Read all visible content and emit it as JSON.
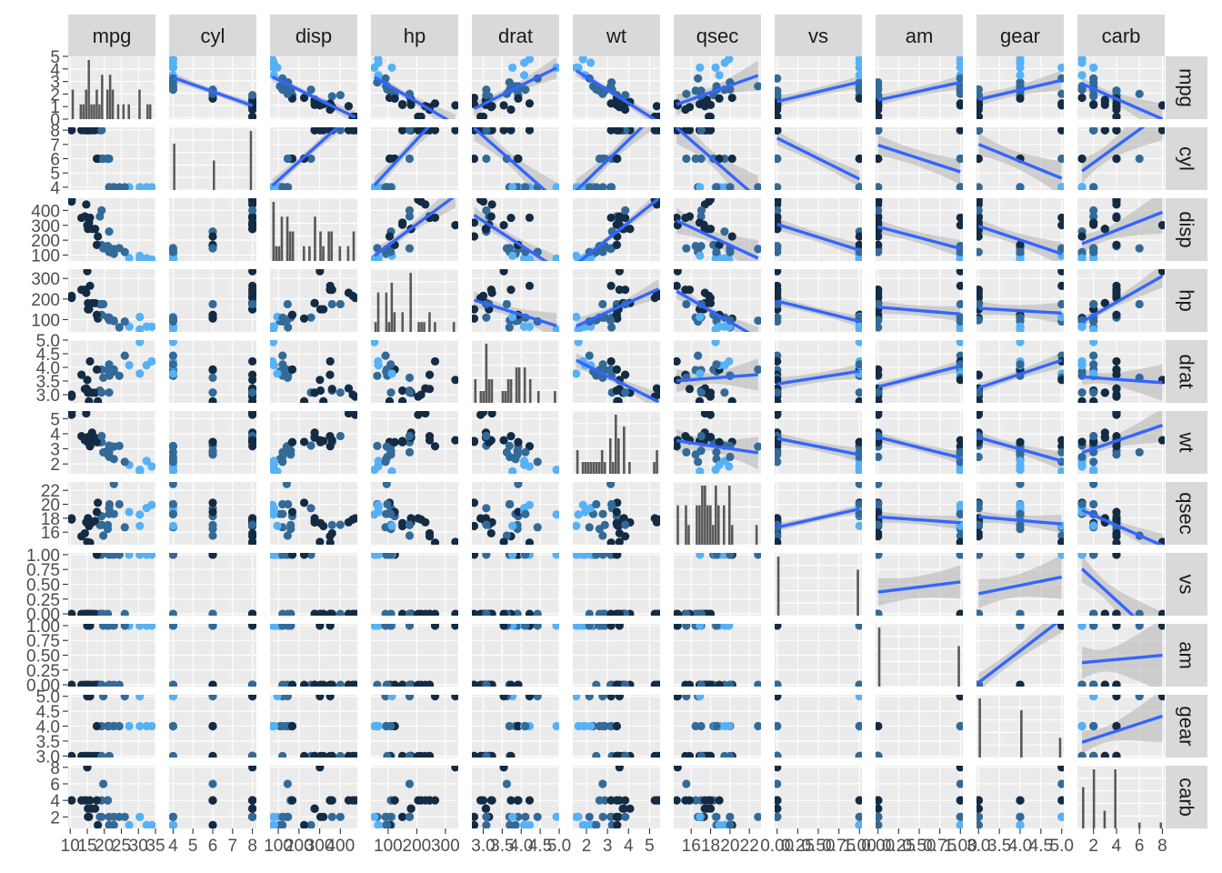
{
  "chart_data": {
    "type": "scatter-matrix",
    "description_variables": [
      "mpg",
      "cyl",
      "disp",
      "hp",
      "drat",
      "wt",
      "qsec",
      "vs",
      "am",
      "gear",
      "carb"
    ],
    "diagonal": "histogram",
    "upper": "points with linear fit and confidence band",
    "lower": "points",
    "colors": {
      "panel_bg": "#ebebeb",
      "grid_major": "#ffffff",
      "strip_bg": "#d9d9d9",
      "fit_line": "#3366ff",
      "band": "#b3b3b3",
      "bar": "#595959",
      "point_dark": "#132b43",
      "point_mid": "#336a98",
      "point_light": "#56b1f7"
    },
    "variables": [
      {
        "name": "mpg",
        "range": [
          9.4,
          35.0
        ],
        "ticks": [
          10,
          15,
          20,
          25,
          30,
          35
        ],
        "tick_labels": [
          "10",
          "15",
          "20",
          "25",
          "30",
          "35"
        ]
      },
      {
        "name": "cyl",
        "range": [
          3.8,
          8.2
        ],
        "ticks": [
          4,
          5,
          6,
          7,
          8
        ],
        "tick_labels": [
          "4",
          "5",
          "6",
          "7",
          "8"
        ]
      },
      {
        "name": "disp",
        "range": [
          60,
          482
        ],
        "ticks": [
          100,
          200,
          300,
          400
        ],
        "tick_labels": [
          "100",
          "200",
          "300",
          "400"
        ]
      },
      {
        "name": "hp",
        "range": [
          40,
          345
        ],
        "ticks": [
          100,
          200,
          300
        ],
        "tick_labels": [
          "100",
          "200",
          "300"
        ]
      },
      {
        "name": "drat",
        "range": [
          2.7,
          5.0
        ],
        "ticks": [
          3.0,
          3.5,
          4.0,
          4.5,
          5.0
        ],
        "tick_labels": [
          "3.0",
          "3.5",
          "4.0",
          "4.5",
          "5.0"
        ]
      },
      {
        "name": "wt",
        "range": [
          1.35,
          5.5
        ],
        "ticks": [
          2,
          3,
          4,
          5
        ],
        "tick_labels": [
          "2",
          "3",
          "4",
          "5"
        ]
      },
      {
        "name": "qsec",
        "range": [
          14.2,
          23.2
        ],
        "ticks": [
          16,
          18,
          20,
          22
        ],
        "tick_labels": [
          "16",
          "18",
          "20",
          "22"
        ]
      },
      {
        "name": "vs",
        "range": [
          -0.03,
          1.03
        ],
        "ticks": [
          0,
          0.25,
          0.5,
          0.75,
          1.0
        ],
        "tick_labels": [
          "0.00",
          "0.25",
          "0.50",
          "0.75",
          "1.00"
        ]
      },
      {
        "name": "am",
        "range": [
          -0.03,
          1.03
        ],
        "ticks": [
          0,
          0.25,
          0.5,
          0.75,
          1.0
        ],
        "tick_labels": [
          "0.00",
          "0.25",
          "0.50",
          "0.75",
          "1.00"
        ]
      },
      {
        "name": "gear",
        "range": [
          2.95,
          5.05
        ],
        "ticks": [
          3.0,
          3.5,
          4.0,
          4.5,
          5.0
        ],
        "tick_labels": [
          "3.0",
          "3.5",
          "4.0",
          "4.5",
          "5.0"
        ]
      },
      {
        "name": "carb",
        "range": [
          0.6,
          8.2
        ],
        "ticks": [
          2,
          4,
          6,
          8
        ],
        "tick_labels": [
          "2",
          "4",
          "6",
          "8"
        ]
      }
    ],
    "diag_y_axis": {
      "ticks": [
        0,
        1,
        2,
        3,
        4,
        5
      ],
      "tick_labels": [
        "0",
        "1",
        "2",
        "3",
        "4",
        "5"
      ]
    },
    "cars": [
      [
        21.0,
        6,
        160.0,
        110,
        3.9,
        2.62,
        16.46,
        0,
        1,
        4,
        4
      ],
      [
        21.0,
        6,
        160.0,
        110,
        3.9,
        2.875,
        17.02,
        0,
        1,
        4,
        4
      ],
      [
        22.8,
        4,
        108.0,
        93,
        3.85,
        2.32,
        18.61,
        1,
        1,
        4,
        1
      ],
      [
        21.4,
        6,
        258.0,
        110,
        3.08,
        3.215,
        19.44,
        1,
        0,
        3,
        1
      ],
      [
        18.7,
        8,
        360.0,
        175,
        3.15,
        3.44,
        17.02,
        0,
        0,
        3,
        2
      ],
      [
        18.1,
        6,
        225.0,
        105,
        2.76,
        3.46,
        20.22,
        1,
        0,
        3,
        1
      ],
      [
        14.3,
        8,
        360.0,
        245,
        3.21,
        3.57,
        15.84,
        0,
        0,
        3,
        4
      ],
      [
        24.4,
        4,
        146.7,
        62,
        3.69,
        3.19,
        20.0,
        1,
        0,
        4,
        2
      ],
      [
        22.8,
        4,
        140.8,
        95,
        3.92,
        3.15,
        22.9,
        1,
        0,
        4,
        2
      ],
      [
        19.2,
        6,
        167.6,
        123,
        3.92,
        3.44,
        18.3,
        1,
        0,
        4,
        4
      ],
      [
        17.8,
        6,
        167.6,
        123,
        3.92,
        3.44,
        18.9,
        1,
        0,
        4,
        4
      ],
      [
        16.4,
        8,
        275.8,
        180,
        3.07,
        4.07,
        17.4,
        0,
        0,
        3,
        3
      ],
      [
        17.3,
        8,
        275.8,
        180,
        3.07,
        3.73,
        17.6,
        0,
        0,
        3,
        3
      ],
      [
        15.2,
        8,
        275.8,
        180,
        3.07,
        3.78,
        18.0,
        0,
        0,
        3,
        3
      ],
      [
        10.4,
        8,
        472.0,
        205,
        2.93,
        5.25,
        17.98,
        0,
        0,
        3,
        4
      ],
      [
        10.4,
        8,
        460.0,
        215,
        3.0,
        5.424,
        17.82,
        0,
        0,
        3,
        4
      ],
      [
        14.7,
        8,
        440.0,
        230,
        3.23,
        5.345,
        17.42,
        0,
        0,
        3,
        4
      ],
      [
        32.4,
        4,
        78.7,
        66,
        4.08,
        2.2,
        19.47,
        1,
        1,
        4,
        1
      ],
      [
        30.4,
        4,
        75.7,
        52,
        4.93,
        1.615,
        18.52,
        1,
        1,
        4,
        2
      ],
      [
        33.9,
        4,
        71.1,
        65,
        4.22,
        1.835,
        19.9,
        1,
        1,
        4,
        1
      ],
      [
        21.5,
        4,
        120.1,
        97,
        3.7,
        2.465,
        20.01,
        1,
        0,
        3,
        1
      ],
      [
        15.5,
        8,
        318.0,
        150,
        2.76,
        3.52,
        16.87,
        0,
        0,
        3,
        2
      ],
      [
        15.2,
        8,
        304.0,
        150,
        3.15,
        3.435,
        17.3,
        0,
        0,
        3,
        2
      ],
      [
        13.3,
        8,
        350.0,
        245,
        3.73,
        3.84,
        15.41,
        0,
        0,
        3,
        4
      ],
      [
        19.2,
        8,
        400.0,
        175,
        3.08,
        3.845,
        17.05,
        0,
        0,
        3,
        2
      ],
      [
        27.3,
        4,
        79.0,
        66,
        4.08,
        1.935,
        18.9,
        1,
        1,
        4,
        1
      ],
      [
        26.0,
        4,
        120.3,
        91,
        4.43,
        2.14,
        16.7,
        0,
        1,
        5,
        2
      ],
      [
        30.4,
        4,
        95.1,
        113,
        3.77,
        1.513,
        16.9,
        1,
        1,
        5,
        2
      ],
      [
        15.8,
        8,
        351.0,
        264,
        4.22,
        3.17,
        14.5,
        0,
        1,
        5,
        4
      ],
      [
        19.7,
        6,
        145.0,
        175,
        3.62,
        2.77,
        15.5,
        0,
        1,
        5,
        6
      ],
      [
        15.0,
        8,
        301.0,
        335,
        3.54,
        3.57,
        14.6,
        0,
        1,
        5,
        8
      ],
      [
        21.4,
        4,
        121.0,
        109,
        4.11,
        2.78,
        18.6,
        1,
        1,
        4,
        2
      ]
    ]
  }
}
